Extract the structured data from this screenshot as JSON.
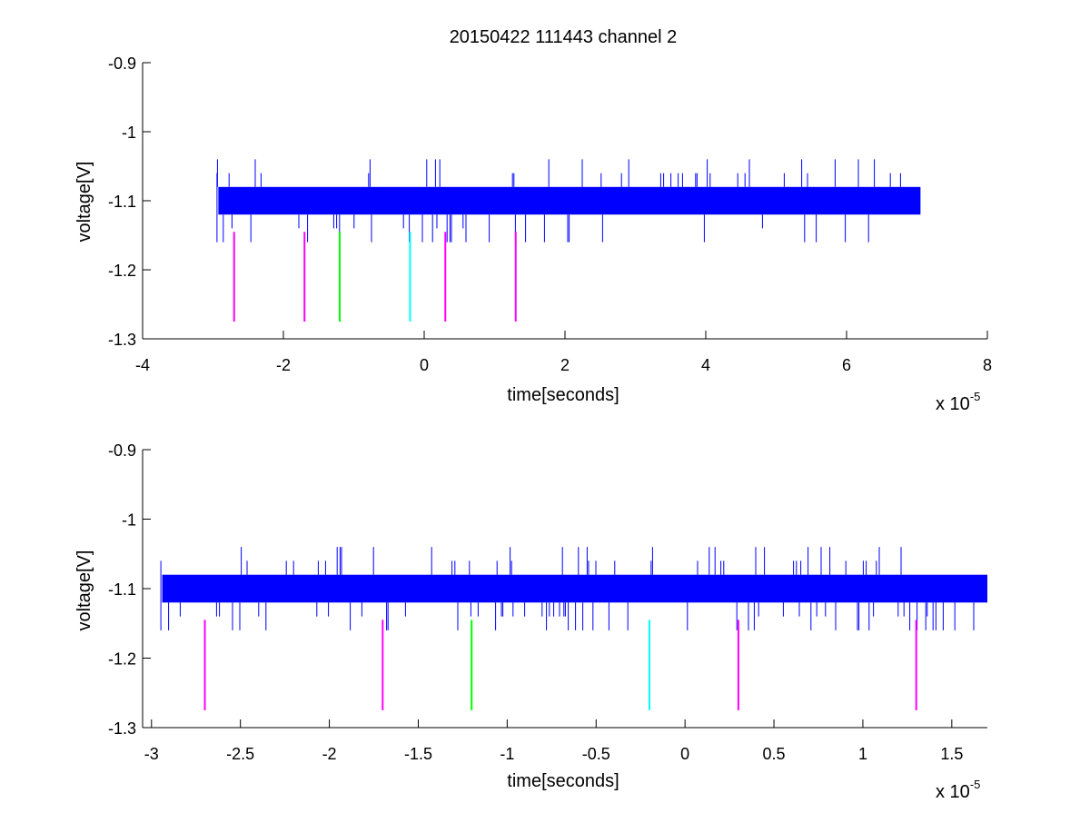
{
  "colors": {
    "signal": "#0000ff",
    "marker_magenta": "#ff00ff",
    "marker_green": "#00ff00",
    "marker_cyan": "#00ffff",
    "axes": "#000000",
    "background": "#ffffff"
  },
  "figure": {
    "title": "20150422 111443 channel 2"
  },
  "chart_data": [
    {
      "type": "line",
      "title": "20150422 111443 channel 2",
      "xlabel": "time[seconds]",
      "ylabel": "voltage[V]",
      "x_exponent_base": "x 10",
      "x_exponent_power": "-5",
      "xlim": [
        -4,
        8
      ],
      "ylim": [
        -1.3,
        -0.9
      ],
      "x_ticks": [
        -4,
        -2,
        0,
        2,
        4,
        6,
        8
      ],
      "x_tick_labels": [
        "-4",
        "-2",
        "0",
        "2",
        "4",
        "6",
        "8"
      ],
      "y_ticks": [
        -0.9,
        -1,
        -1.1,
        -1.2,
        -1.3
      ],
      "y_tick_labels": [
        "-0.9",
        "-1",
        "-1.1",
        "-1.2",
        "-1.3"
      ],
      "grid": false,
      "series": [
        {
          "color": "#0000ff",
          "x_range": [
            -2.95,
            7.05
          ],
          "band": [
            -1.12,
            -1.08
          ],
          "levels": [
            -1.16,
            -1.14,
            -1.12,
            -1.1,
            -1.08,
            -1.06,
            -1.04
          ]
        }
      ],
      "markers": [
        {
          "x": -2.7,
          "y_range": [
            -1.275,
            -1.145
          ],
          "color": "#ff00ff"
        },
        {
          "x": -1.7,
          "y_range": [
            -1.275,
            -1.145
          ],
          "color": "#ff00ff"
        },
        {
          "x": -1.2,
          "y_range": [
            -1.275,
            -1.145
          ],
          "color": "#00ff00"
        },
        {
          "x": -0.2,
          "y_range": [
            -1.275,
            -1.145
          ],
          "color": "#00ffff"
        },
        {
          "x": 0.3,
          "y_range": [
            -1.275,
            -1.145
          ],
          "color": "#ff00ff"
        },
        {
          "x": 1.3,
          "y_range": [
            -1.275,
            -1.145
          ],
          "color": "#ff00ff"
        }
      ]
    },
    {
      "type": "line",
      "title": "",
      "xlabel": "time[seconds]",
      "ylabel": "voltage[V]",
      "x_exponent_base": "x 10",
      "x_exponent_power": "-5",
      "xlim": [
        -3.05,
        1.7
      ],
      "ylim": [
        -1.3,
        -0.9
      ],
      "x_ticks": [
        -3,
        -2.5,
        -2,
        -1.5,
        -1,
        -0.5,
        0,
        0.5,
        1,
        1.5
      ],
      "x_tick_labels": [
        "-3",
        "-2.5",
        "-2",
        "-1.5",
        "-1",
        "-0.5",
        "0",
        "0.5",
        "1",
        "1.5"
      ],
      "y_ticks": [
        -0.9,
        -1,
        -1.1,
        -1.2,
        -1.3
      ],
      "y_tick_labels": [
        "-0.9",
        "-1",
        "-1.1",
        "-1.2",
        "-1.3"
      ],
      "grid": false,
      "series": [
        {
          "color": "#0000ff",
          "x_range": [
            -2.95,
            1.7
          ],
          "band": [
            -1.12,
            -1.08
          ],
          "levels": [
            -1.16,
            -1.14,
            -1.12,
            -1.1,
            -1.08,
            -1.06,
            -1.04
          ]
        }
      ],
      "markers": [
        {
          "x": -2.7,
          "y_range": [
            -1.275,
            -1.145
          ],
          "color": "#ff00ff"
        },
        {
          "x": -1.7,
          "y_range": [
            -1.275,
            -1.145
          ],
          "color": "#ff00ff"
        },
        {
          "x": -1.2,
          "y_range": [
            -1.275,
            -1.145
          ],
          "color": "#00ff00"
        },
        {
          "x": -0.2,
          "y_range": [
            -1.275,
            -1.145
          ],
          "color": "#00ffff"
        },
        {
          "x": 0.3,
          "y_range": [
            -1.275,
            -1.145
          ],
          "color": "#ff00ff"
        },
        {
          "x": 1.3,
          "y_range": [
            -1.275,
            -1.145
          ],
          "color": "#ff00ff"
        }
      ]
    }
  ]
}
